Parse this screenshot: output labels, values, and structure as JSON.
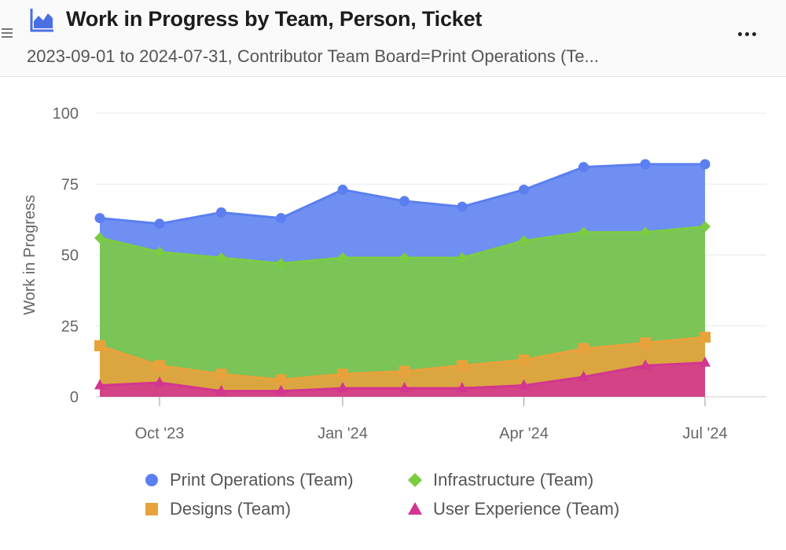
{
  "header": {
    "title": "Work in Progress by Team, Person, Ticket",
    "subtitle": "2023-09-01 to 2024-07-31, Contributor Team Board=Print Operations (Te..."
  },
  "colors": {
    "print_operations": "#5b7ff0",
    "infrastructure": "#7ccc42",
    "designs": "#e8a23c",
    "user_experience": "#d2368f",
    "title_icon": "#4a6fe3"
  },
  "chart_data": {
    "type": "area",
    "stacked": false,
    "ylabel": "Work in Progress",
    "ylim": [
      0,
      100
    ],
    "yticks": [
      0,
      25,
      50,
      75,
      100
    ],
    "x": [
      "2023-09-01",
      "2023-10-01",
      "2023-11-01",
      "2023-12-01",
      "2024-01-01",
      "2024-02-01",
      "2024-03-01",
      "2024-04-01",
      "2024-05-01",
      "2024-06-01",
      "2024-07-01"
    ],
    "xticks": [
      {
        "date": "2023-10-01",
        "label": "Oct '23"
      },
      {
        "date": "2024-01-01",
        "label": "Jan '24"
      },
      {
        "date": "2024-04-01",
        "label": "Apr '24"
      },
      {
        "date": "2024-07-01",
        "label": "Jul '24"
      }
    ],
    "grid": true,
    "legend_position": "bottom",
    "series": [
      {
        "name": "Print Operations (Team)",
        "key": "print_operations",
        "marker": "circle",
        "values": [
          63,
          61,
          65,
          63,
          73,
          69,
          67,
          73,
          81,
          82,
          82
        ]
      },
      {
        "name": "Infrastructure (Team)",
        "key": "infrastructure",
        "marker": "diamond",
        "values": [
          56,
          51,
          49,
          47,
          49,
          49,
          49,
          55,
          58,
          58,
          60
        ]
      },
      {
        "name": "Designs (Team)",
        "key": "designs",
        "marker": "square",
        "values": [
          18,
          11,
          8,
          6,
          8,
          9,
          11,
          13,
          17,
          19,
          21
        ]
      },
      {
        "name": "User Experience (Team)",
        "key": "user_experience",
        "marker": "triangle",
        "values": [
          4,
          5,
          2,
          2,
          3,
          3,
          3,
          4,
          7,
          11,
          12
        ]
      }
    ]
  }
}
